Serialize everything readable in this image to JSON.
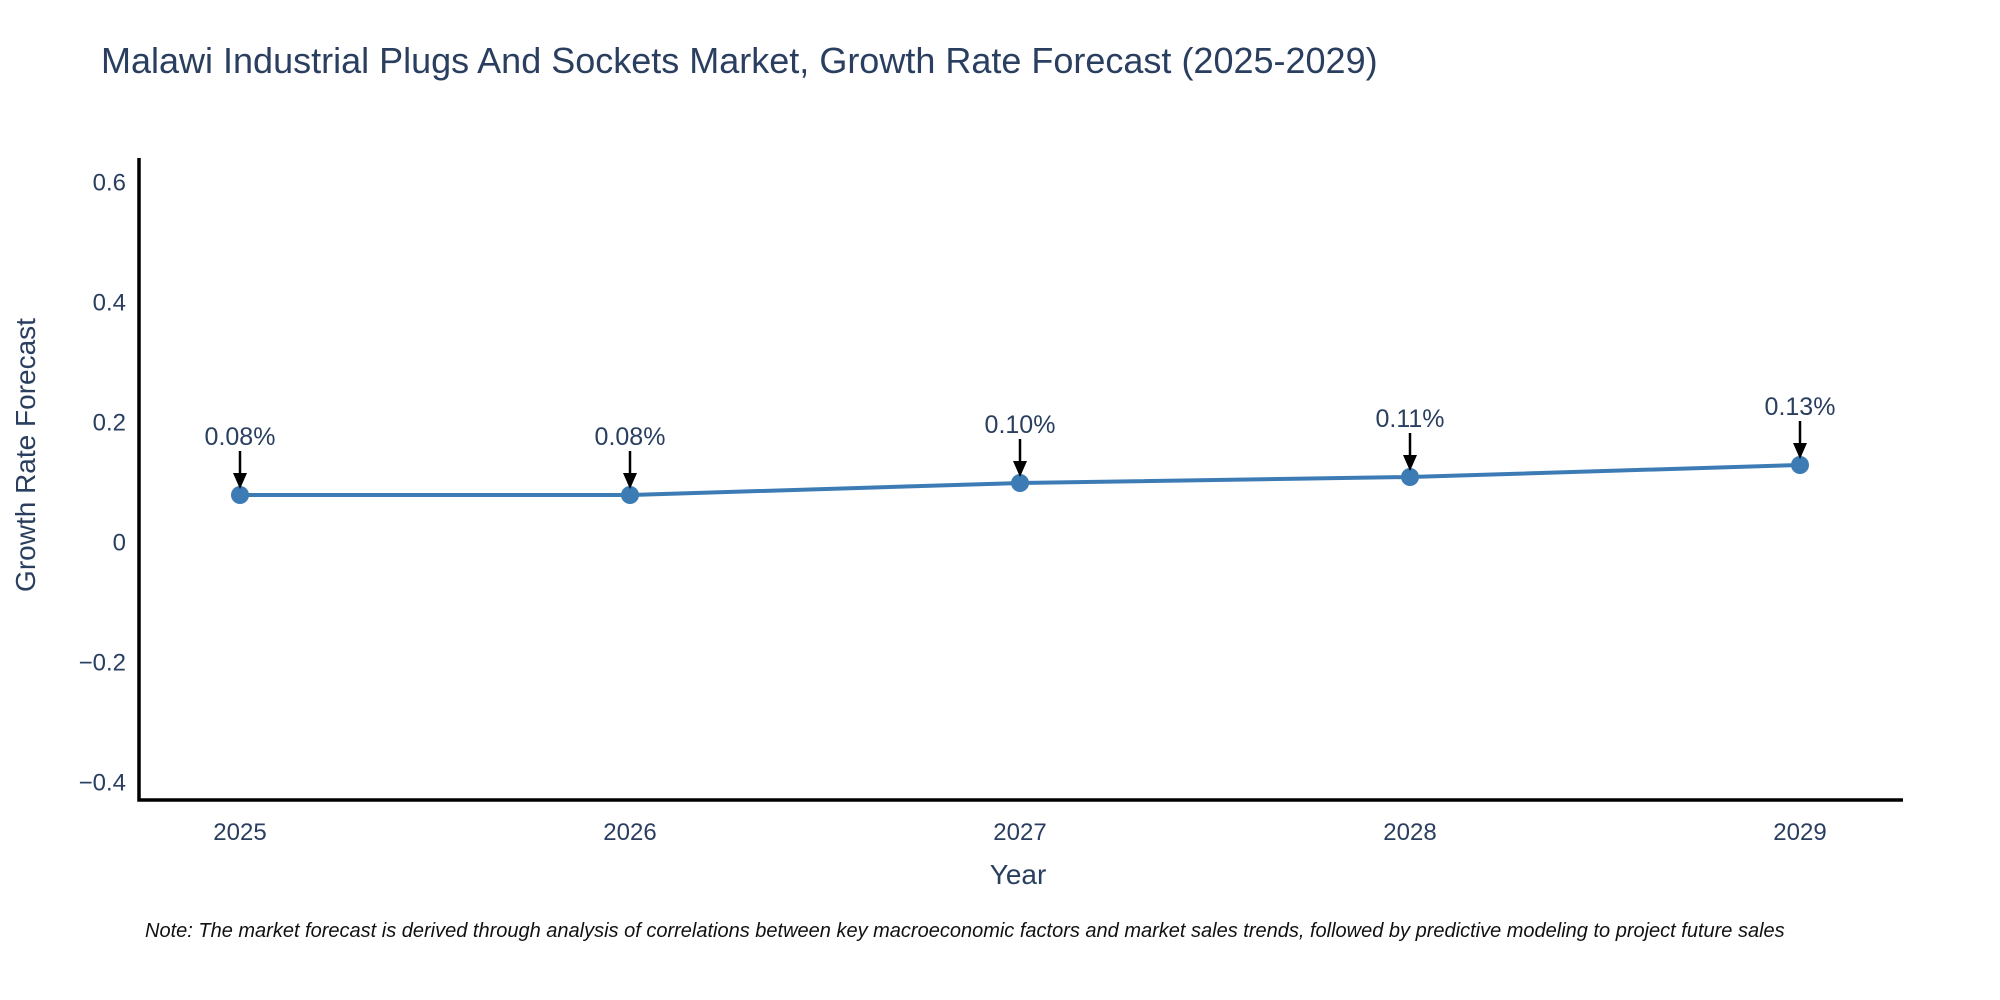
{
  "note": "Note: The market forecast is derived through analysis of correlations between key macroeconomic factors and market sales trends, followed by predictive modeling to project future sales",
  "chart_data": {
    "type": "line",
    "title": "Malawi Industrial Plugs And Sockets Market, Growth Rate Forecast (2025-2029)",
    "xlabel": "Year",
    "ylabel": "Growth Rate Forecast",
    "x": [
      2025,
      2026,
      2027,
      2028,
      2029
    ],
    "series": [
      {
        "name": "Growth Rate Forecast",
        "values": [
          0.08,
          0.08,
          0.1,
          0.11,
          0.13
        ]
      }
    ],
    "point_labels": [
      "0.08%",
      "0.08%",
      "0.10%",
      "0.11%",
      "0.13%"
    ],
    "yticks": [
      0.6,
      0.4,
      0.2,
      0,
      -0.2,
      -0.4
    ],
    "ytick_labels": [
      "0.6",
      "0.4",
      "0.2",
      "0",
      "−0.2",
      "−0.4"
    ],
    "ylim": [
      -0.43,
      0.64
    ],
    "grid": false,
    "legend": "none",
    "line_color": "#3d7bb5",
    "marker_color": "#3d7bb5",
    "axis_color": "#000000",
    "text_color": "#2a3f5f",
    "annotation_arrow_color": "#000000",
    "background_color": "#ffffff"
  }
}
